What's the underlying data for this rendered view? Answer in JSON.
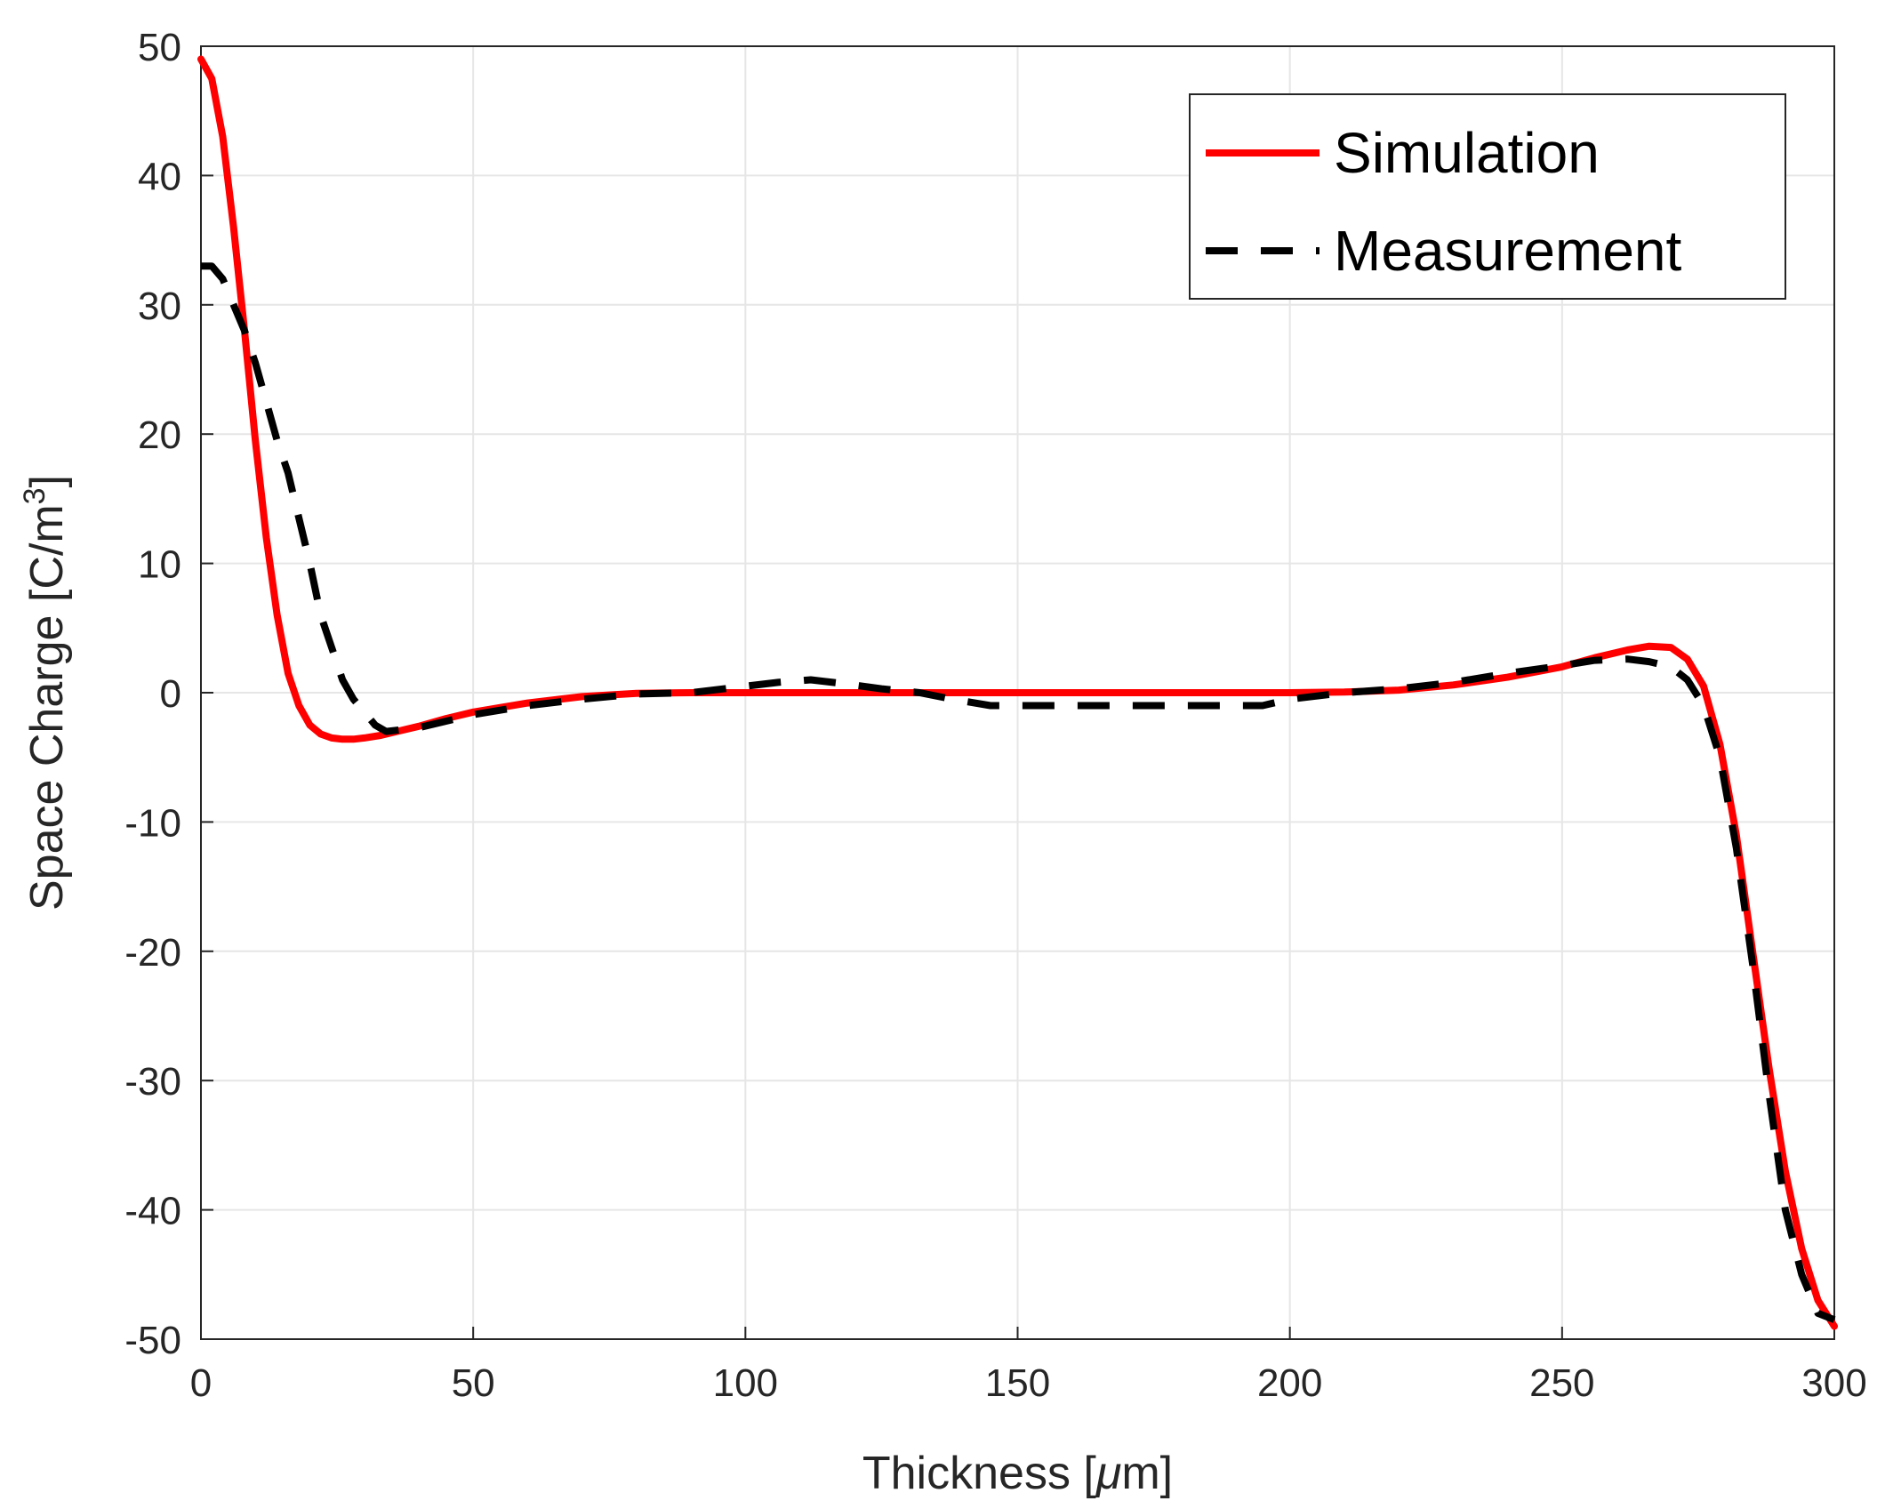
{
  "chart_data": {
    "type": "line",
    "title": "",
    "xlabel_main": "Thickness [",
    "xlabel_unit": "μ",
    "xlabel_tail": "m]",
    "ylabel_main": "Space Charge [C/m",
    "ylabel_sup": "3",
    "ylabel_tail": "]",
    "xlim": [
      0,
      300
    ],
    "ylim": [
      -50,
      50
    ],
    "grid": true,
    "legend_position": "top-right",
    "x_ticks": [
      0,
      50,
      100,
      150,
      200,
      250,
      300
    ],
    "y_ticks": [
      50,
      40,
      30,
      20,
      10,
      0,
      -10,
      -20,
      -30,
      -40,
      -50
    ],
    "series": [
      {
        "name": "Simulation",
        "style": "solid",
        "color": "#ff0000",
        "x": [
          0,
          2,
          4,
          6,
          8,
          10,
          12,
          14,
          16,
          18,
          20,
          22,
          24,
          26,
          28,
          30,
          33,
          36,
          40,
          45,
          50,
          60,
          70,
          80,
          90,
          100,
          120,
          140,
          160,
          180,
          200,
          210,
          220,
          230,
          240,
          250,
          256,
          262,
          266,
          270,
          273,
          276,
          279,
          282,
          285,
          288,
          291,
          294,
          297,
          300
        ],
        "y": [
          49,
          47.5,
          43,
          36,
          28,
          19.5,
          12,
          6,
          1.5,
          -1,
          -2.5,
          -3.2,
          -3.5,
          -3.6,
          -3.6,
          -3.5,
          -3.3,
          -3,
          -2.6,
          -2,
          -1.5,
          -0.8,
          -0.3,
          -0.05,
          0,
          0,
          0,
          0,
          0,
          0,
          0,
          0.05,
          0.2,
          0.6,
          1.2,
          2,
          2.7,
          3.3,
          3.6,
          3.5,
          2.6,
          0.5,
          -4,
          -11,
          -20,
          -29,
          -37,
          -43,
          -47,
          -49
        ]
      },
      {
        "name": "Measurement",
        "style": "dashed",
        "color": "#000000",
        "x": [
          0,
          2,
          4,
          6,
          8,
          10,
          12,
          14,
          16,
          18,
          20,
          22,
          24,
          26,
          28,
          30,
          32,
          34,
          36,
          40,
          50,
          60,
          70,
          80,
          90,
          100,
          106,
          112,
          118,
          125,
          132,
          138,
          145,
          160,
          180,
          195,
          200,
          210,
          220,
          230,
          240,
          250,
          256,
          262,
          266,
          270,
          273,
          276,
          279,
          282,
          285,
          288,
          291,
          294,
          297,
          300
        ],
        "y": [
          33,
          33,
          32,
          30,
          28,
          25.5,
          22.5,
          19.5,
          17,
          13.5,
          10,
          6,
          3.5,
          1,
          -0.5,
          -1.5,
          -2.5,
          -3,
          -2.9,
          -2.7,
          -1.7,
          -1,
          -0.5,
          -0.1,
          0,
          0.5,
          0.8,
          1,
          0.7,
          0.3,
          0,
          -0.5,
          -1,
          -1,
          -1,
          -1,
          -0.5,
          0,
          0.3,
          0.8,
          1.5,
          2.1,
          2.5,
          2.6,
          2.4,
          2,
          1,
          -1,
          -5,
          -12,
          -21,
          -31,
          -40,
          -45,
          -48,
          -48.5
        ]
      }
    ]
  }
}
